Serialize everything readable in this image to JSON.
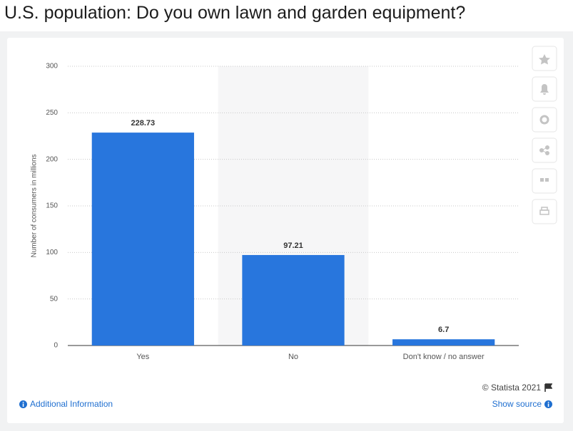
{
  "chart_data": {
    "type": "bar",
    "title": "U.S. population: Do you own lawn and garden equipment?",
    "y_label": "Number of consumers in millions",
    "categories": [
      "Yes",
      "No",
      "Don't know / no answer"
    ],
    "values": [
      228.73,
      97.21,
      6.7
    ],
    "color": "#2876dd",
    "ylim": [
      0,
      300
    ],
    "yticks": [
      0,
      50,
      100,
      150,
      200,
      250,
      300
    ],
    "grid": true
  },
  "footer": {
    "copyright": "© Statista 2021",
    "additional_info": "Additional Information",
    "show_source": "Show source"
  }
}
